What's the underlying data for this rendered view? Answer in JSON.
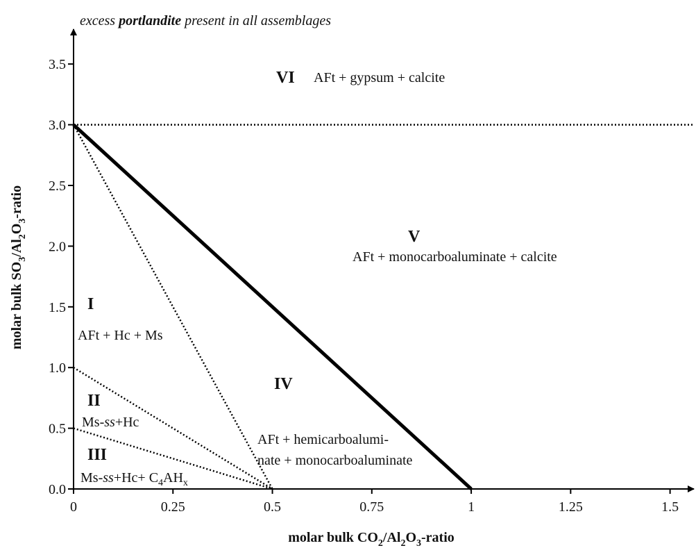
{
  "chart_data": {
    "type": "line",
    "title": [
      "excess ",
      "portlandite",
      " present in all assemblages"
    ],
    "xlabel": [
      "molar bulk CO",
      "2",
      "/Al",
      "2",
      "O",
      "3",
      "-ratio"
    ],
    "ylabel": [
      "molar bulk SO",
      "3",
      "/Al",
      "2",
      "O",
      "3",
      "-ratio"
    ],
    "xlim": [
      0,
      1.56
    ],
    "ylim": [
      0,
      3.77
    ],
    "xticks": [
      0,
      0.25,
      0.5,
      0.75,
      1,
      1.25,
      1.5
    ],
    "yticks": [
      {
        "value": 0,
        "label": "0.0"
      },
      0.5,
      {
        "value": 1,
        "label": "1.0"
      },
      1.5,
      {
        "value": 2,
        "label": "2.0"
      },
      2.5,
      {
        "value": 3,
        "label": "3.0"
      },
      3.5
    ],
    "color": "#000000",
    "lines": [
      {
        "x": [
          0,
          1
        ],
        "y": [
          3,
          0
        ],
        "style": "solid"
      },
      {
        "x": [
          0,
          1.56
        ],
        "y": [
          3,
          3
        ],
        "style": "dotted"
      },
      {
        "x": [
          0,
          0.5
        ],
        "y": [
          3,
          0
        ],
        "style": "dotted"
      },
      {
        "x": [
          0,
          0.5
        ],
        "y": [
          1,
          0
        ],
        "style": "dotted"
      },
      {
        "x": [
          0,
          0.5
        ],
        "y": [
          0.5,
          0
        ],
        "style": "dotted"
      }
    ],
    "annotations": [
      [
        "VI"
      ],
      [
        "AFt + gypsum + calcite"
      ],
      [
        "V"
      ],
      [
        "AFt + monocarboaluminate + calcite"
      ],
      [
        "I"
      ],
      [
        "AFt + Hc + Ms"
      ],
      [
        "II"
      ],
      [
        "Ms-",
        "ss",
        "+Hc"
      ],
      [
        "III"
      ],
      [
        "Ms-",
        "ss",
        "+Hc+ C",
        "4",
        "AH",
        "x"
      ],
      [
        "IV"
      ],
      [
        "AFt + hemicarboalumi-"
      ],
      [
        "nate + monocarboaluminate"
      ]
    ]
  }
}
